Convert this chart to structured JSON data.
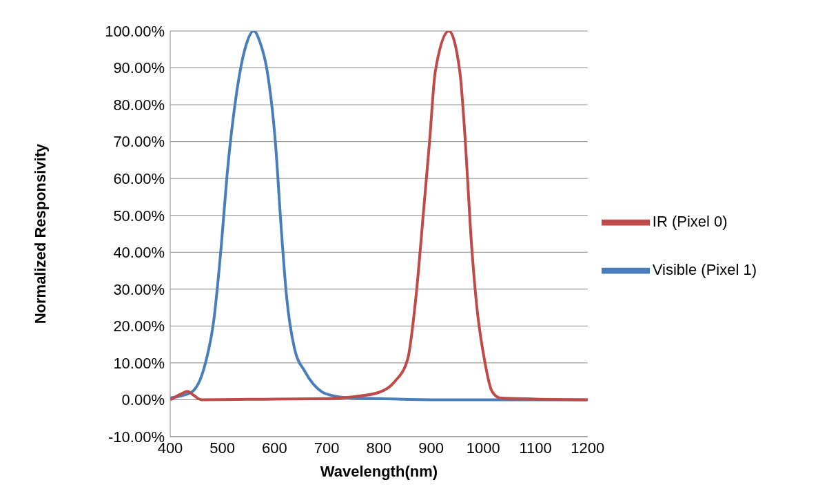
{
  "chart_data": {
    "type": "line",
    "xlabel": "Wavelength(nm)",
    "ylabel": "Normalized Responsivity",
    "xlim": [
      400,
      1200
    ],
    "xticks": [
      400,
      500,
      600,
      700,
      800,
      900,
      1000,
      1100,
      1200
    ],
    "ylim": [
      -10,
      100
    ],
    "yticks": [
      {
        "value": -10,
        "label": "-10.00%"
      },
      {
        "value": 0,
        "label": "0.00%"
      },
      {
        "value": 10,
        "label": "10.00%"
      },
      {
        "value": 20,
        "label": "20.00%"
      },
      {
        "value": 30,
        "label": "30.00%"
      },
      {
        "value": 40,
        "label": "40.00%"
      },
      {
        "value": 50,
        "label": "50.00%"
      },
      {
        "value": 60,
        "label": "60.00%"
      },
      {
        "value": 70,
        "label": "70.00%"
      },
      {
        "value": 80,
        "label": "80.00%"
      },
      {
        "value": 90,
        "label": "90.00%"
      },
      {
        "value": 100,
        "label": "100.00%"
      }
    ],
    "grid": "y",
    "legend": "right",
    "marker": "none",
    "line_style": "solid",
    "series": [
      {
        "name": "Visible (Pixel 1)",
        "color": "#4a7ebb",
        "x": [
          400,
          440,
          467,
          483,
          498,
          509,
          526,
          545,
          560,
          572,
          586,
          602,
          612,
          623,
          638,
          658,
          690,
          715,
          750,
          800,
          900,
          1000,
          1100,
          1200
        ],
        "values": [
          0.5,
          2,
          9.7,
          21,
          42,
          61,
          82,
          96,
          100,
          97,
          89,
          69,
          48,
          28,
          14,
          7.7,
          2.2,
          1,
          0.5,
          0.3,
          0,
          0,
          0,
          0
        ]
      },
      {
        "name": "IR (Pixel 0)",
        "color": "#be4b48",
        "x": [
          400,
          420,
          433,
          445,
          460,
          600,
          700,
          750,
          800,
          830,
          855,
          871,
          886,
          897,
          908,
          934,
          955,
          966,
          976,
          987,
          1002,
          1017,
          1032,
          1100,
          1200
        ],
        "values": [
          0,
          1.5,
          2.3,
          1.2,
          0,
          0.2,
          0.3,
          0.8,
          2,
          4.9,
          11,
          28,
          52,
          70,
          89,
          100,
          89,
          69,
          45,
          26,
          11,
          2.2,
          0.5,
          0.2,
          0
        ]
      }
    ]
  }
}
